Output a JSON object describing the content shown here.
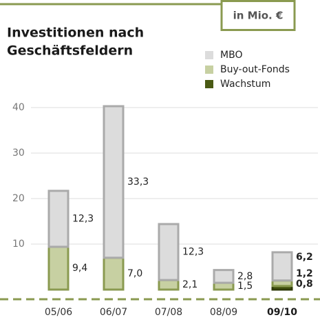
{
  "chart_data": {
    "type": "stacked_bar",
    "title": [
      "Investitionen nach",
      "Geschäftsfeldern"
    ],
    "unit": "in Mio. €",
    "categories": [
      "05/06",
      "06/07",
      "07/08",
      "08/09",
      "09/10"
    ],
    "highlight_category": "09/10",
    "series": [
      {
        "name": "Wachstum",
        "color": "#4a5a14",
        "values": [
          null,
          null,
          null,
          null,
          0.8
        ],
        "value_labels": [
          null,
          null,
          null,
          null,
          "0,8"
        ]
      },
      {
        "name": "Buy-out-Fonds",
        "color": "#c7d0a2",
        "values": [
          9.4,
          7.0,
          2.1,
          1.5,
          1.2
        ],
        "value_labels": [
          "9,4",
          "7,0",
          "2,1",
          "1,5",
          "1,2"
        ]
      },
      {
        "name": "MBO",
        "color": "#dcdcdc",
        "values": [
          12.3,
          33.3,
          12.3,
          2.8,
          6.2
        ],
        "value_labels": [
          "12,3",
          "33,3",
          "12,3",
          "2,8",
          "6,2"
        ]
      }
    ],
    "ylim": [
      0,
      45
    ],
    "yticks": [
      10,
      20,
      30,
      40
    ],
    "grid": true
  }
}
